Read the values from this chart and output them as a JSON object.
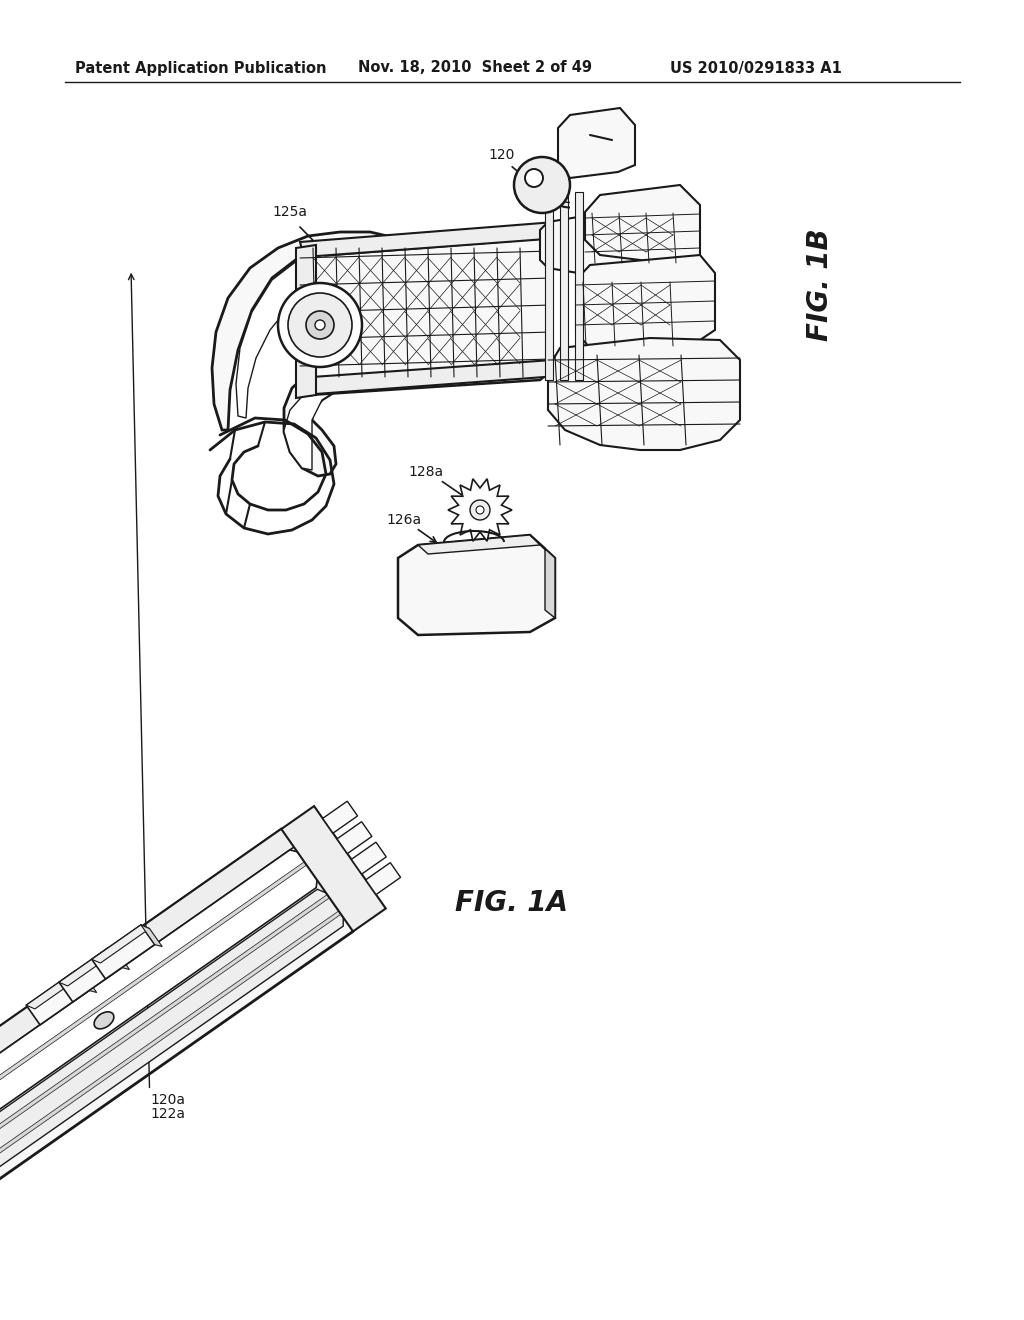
{
  "bg_color": "#ffffff",
  "header_left": "Patent Application Publication",
  "header_center": "Nov. 18, 2010  Sheet 2 of 49",
  "header_right": "US 2010/0291833 A1",
  "fig1b_label": "FIG. 1B",
  "fig1a_label": "FIG. 1A",
  "header_fontsize": 10.5,
  "label_fontsize": 10,
  "fig_label_fontsize": 20,
  "line_color": "#1a1a1a",
  "lw_main": 1.4,
  "lw_thin": 0.7,
  "fill_light": "#f8f8f8",
  "fill_mid": "#eeeeee",
  "fill_dark": "#d8d8d8"
}
